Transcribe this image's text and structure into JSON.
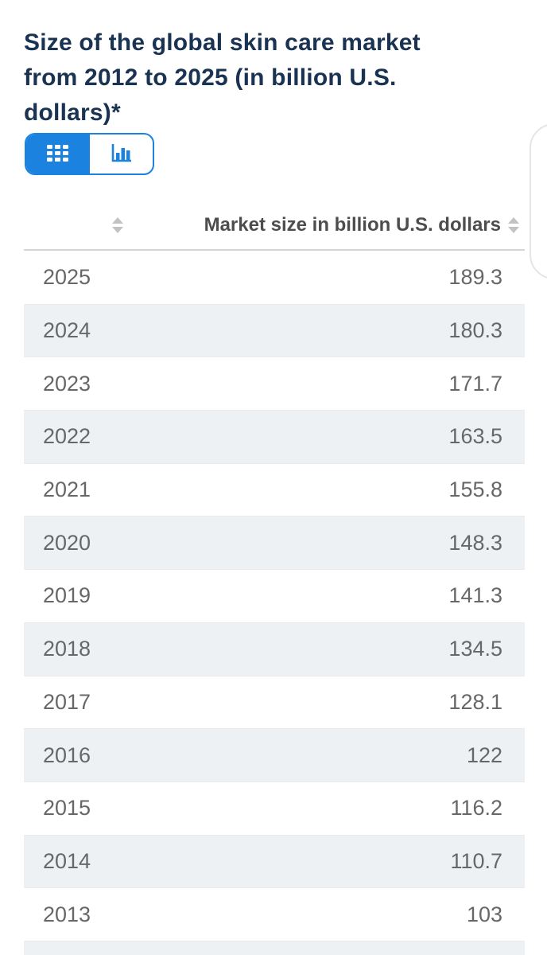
{
  "title": "Size of the global skin care market from 2012 to 2025 (in billion U.S. dollars)*",
  "title_lines": [
    "Size of the global skin care market",
    "from 2012 to 2025 (in billion U.S.",
    "dollars)*"
  ],
  "toggle": {
    "active_view": "table",
    "icons": {
      "table_view": "table-grid-icon",
      "chart_view": "bar-chart-icon"
    }
  },
  "table": {
    "year_header": "",
    "value_header": "Market size in billion U.S. dollars",
    "sort_icon": "sort-arrows-icon",
    "rows": [
      {
        "year": "2025",
        "value": "189.3"
      },
      {
        "year": "2024",
        "value": "180.3"
      },
      {
        "year": "2023",
        "value": "171.7"
      },
      {
        "year": "2022",
        "value": "163.5"
      },
      {
        "year": "2021",
        "value": "155.8"
      },
      {
        "year": "2020",
        "value": "148.3"
      },
      {
        "year": "2019",
        "value": "141.3"
      },
      {
        "year": "2018",
        "value": "134.5"
      },
      {
        "year": "2017",
        "value": "128.1"
      },
      {
        "year": "2016",
        "value": "122"
      },
      {
        "year": "2015",
        "value": "116.2"
      },
      {
        "year": "2014",
        "value": "110.7"
      },
      {
        "year": "2013",
        "value": "103"
      },
      {
        "year": "",
        "value": ""
      }
    ]
  },
  "colors": {
    "accent_blue": "#1b82e0",
    "title_navy": "#1a3353",
    "row_alt_bg": "#eef1f4",
    "cell_text": "#676767",
    "header_text": "#4d4d4d",
    "sort_arrow": "#c2c2c2"
  },
  "chart_data": {
    "type": "table",
    "title": "Size of the global skin care market from 2012 to 2025 (in billion U.S. dollars)*",
    "value_label": "Market size in billion U.S. dollars",
    "categories": [
      "2025",
      "2024",
      "2023",
      "2022",
      "2021",
      "2020",
      "2019",
      "2018",
      "2017",
      "2016",
      "2015",
      "2014",
      "2013"
    ],
    "values": [
      189.3,
      180.3,
      171.7,
      163.5,
      155.8,
      148.3,
      141.3,
      134.5,
      128.1,
      122,
      116.2,
      110.7,
      103
    ]
  }
}
